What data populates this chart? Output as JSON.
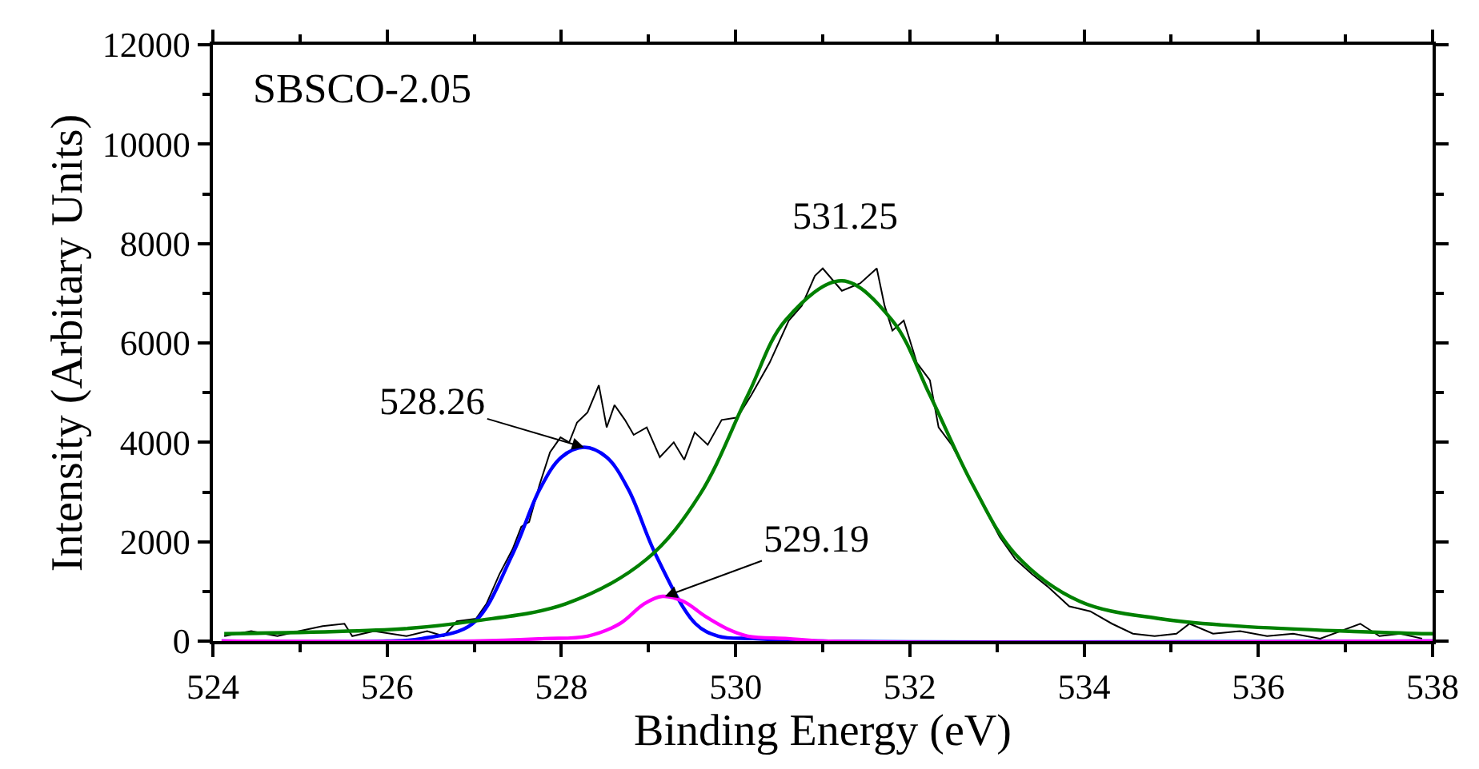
{
  "chart_data": {
    "type": "line",
    "xlabel": "Binding Energy (eV)",
    "ylabel": "Intensity (Arbitary Units)",
    "xlim": [
      524,
      538
    ],
    "xticks": [
      524,
      526,
      528,
      530,
      532,
      534,
      536,
      538
    ],
    "ylim": [
      0,
      12000
    ],
    "yticks": [
      0,
      2000,
      4000,
      6000,
      8000,
      10000,
      12000
    ],
    "marker": "none",
    "line_style": "solid",
    "annotations": [
      "SBSCO-2.05",
      {
        "text": "531.25",
        "x": 531.25,
        "y": 7250
      },
      {
        "text": "528.26",
        "x": 528.26,
        "y": 3900
      },
      {
        "text": "529.19",
        "x": 529.19,
        "y": 900
      }
    ],
    "series": [
      {
        "color": "#000000",
        "x": [
          524.13,
          524.44,
          524.74,
          524.99,
          525.26,
          525.51,
          525.6,
          525.85,
          526.22,
          526.46,
          526.65,
          526.8,
          527.02,
          527.14,
          527.29,
          527.44,
          527.54,
          527.63,
          527.75,
          527.87,
          527.99,
          528.09,
          528.18,
          528.3,
          528.43,
          528.52,
          528.61,
          528.73,
          528.83,
          528.98,
          529.13,
          529.29,
          529.41,
          529.53,
          529.68,
          529.84,
          530.02,
          530.18,
          530.39,
          530.61,
          530.76,
          530.91,
          531.0,
          531.22,
          531.43,
          531.62,
          531.71,
          531.8,
          531.93,
          532.08,
          532.23,
          532.33,
          532.48,
          532.66,
          532.85,
          533.03,
          533.21,
          533.4,
          533.58,
          533.83,
          534.07,
          534.32,
          534.56,
          534.81,
          535.06,
          535.21,
          535.48,
          535.79,
          536.1,
          536.4,
          536.71,
          537.17,
          537.39,
          537.63,
          537.88
        ],
        "values": [
          100,
          200,
          100,
          200,
          300,
          350,
          100,
          200,
          100,
          200,
          100,
          400,
          450,
          750,
          1350,
          1850,
          2300,
          2400,
          3150,
          3800,
          4100,
          4000,
          4400,
          4600,
          5150,
          4300,
          4750,
          4450,
          4150,
          4300,
          3700,
          4000,
          3650,
          4200,
          3950,
          4450,
          4500,
          4950,
          5600,
          6450,
          6750,
          7350,
          7500,
          7050,
          7200,
          7500,
          6750,
          6250,
          6450,
          5600,
          5250,
          4300,
          3950,
          3350,
          2700,
          2100,
          1650,
          1350,
          1100,
          700,
          600,
          350,
          150,
          100,
          150,
          350,
          150,
          200,
          100,
          150,
          50,
          350,
          100,
          150,
          50
        ]
      },
      {
        "color": "#0000ff",
        "x": [
          524.1,
          526.0,
          526.4,
          526.98,
          527.44,
          527.75,
          528.0,
          528.26,
          528.52,
          528.77,
          529.08,
          529.54,
          529.8,
          530.2,
          531.0,
          538.0
        ],
        "values": [
          0,
          0,
          50,
          350,
          1750,
          3050,
          3700,
          3900,
          3700,
          3050,
          1750,
          350,
          100,
          50,
          0,
          0
        ]
      },
      {
        "color": "#ff00ff",
        "x": [
          524.1,
          527.0,
          527.8,
          528.3,
          528.67,
          528.95,
          529.16,
          529.4,
          529.65,
          529.9,
          530.14,
          530.6,
          531.0,
          538.0
        ],
        "values": [
          0,
          0,
          50,
          100,
          350,
          750,
          900,
          800,
          500,
          250,
          100,
          50,
          0,
          0
        ]
      },
      {
        "color": "#008000",
        "x": [
          524.13,
          526.2,
          526.98,
          528.05,
          528.98,
          529.59,
          530.14,
          530.57,
          531.22,
          531.8,
          532.23,
          532.72,
          533.21,
          533.95,
          534.87,
          535.79,
          537.88,
          538.0
        ],
        "values": [
          150,
          250,
          400,
          750,
          1650,
          2950,
          4950,
          6450,
          7250,
          6450,
          4950,
          3150,
          1750,
          800,
          450,
          300,
          150,
          150
        ]
      }
    ]
  }
}
